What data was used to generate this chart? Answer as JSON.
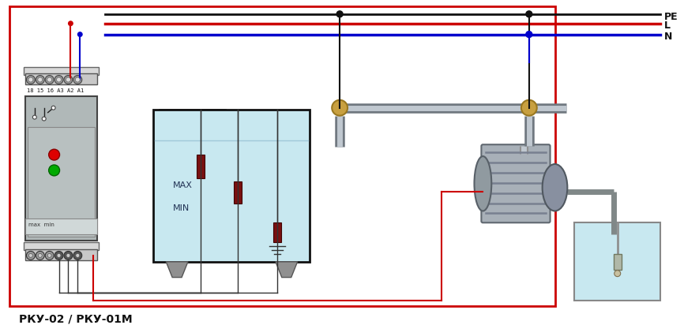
{
  "title": "",
  "label": "РКУ-02 / РКУ-01М",
  "label_fontsize": 10,
  "bg_color": "#ffffff",
  "border_color": "#cc0000",
  "pe_label": "PE",
  "l_label": "L",
  "n_label": "N",
  "wire_pe_color": "#111111",
  "wire_l_color": "#cc0000",
  "wire_n_color": "#0000cc",
  "tank_fill_color": "#c8e8f0",
  "tank_border_color": "#111111",
  "sensor_color": "#7a1010",
  "relay_body_color": "#b0b8b8",
  "relay_border_color": "#444444",
  "pump_color": "#909090",
  "pipe_color": "#909090",
  "pipe_joint_color": "#c8a040",
  "small_tank_fill": "#c8e8f0",
  "red_led": "#dd0000",
  "green_led": "#00aa00",
  "terminal_color": "#808080"
}
